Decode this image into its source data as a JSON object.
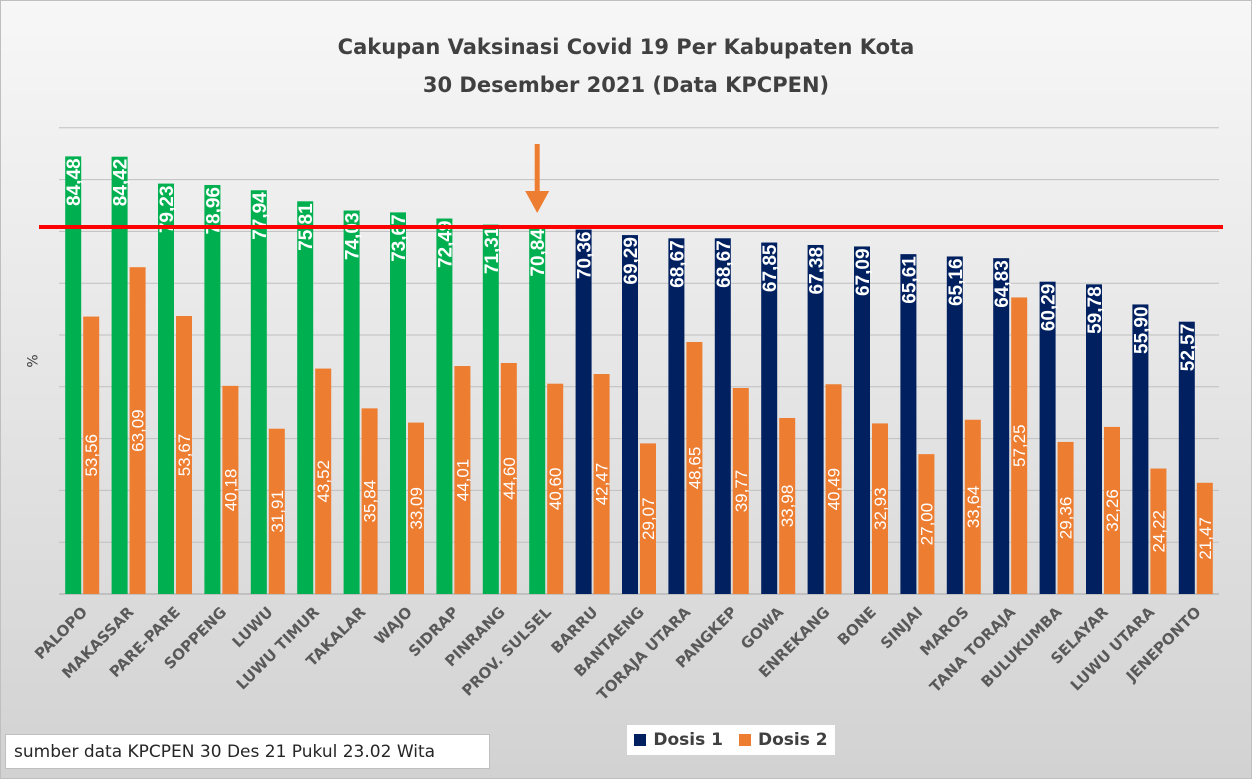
{
  "chart_data": {
    "type": "bar",
    "title": "Cakupan Vaksinasi Covid 19 Per Kabupaten Kota",
    "subtitle": "30 Desember 2021 (Data KPCPEN)",
    "ylabel": "%",
    "xlabel": "",
    "ylim": [
      0,
      100
    ],
    "grid": true,
    "reference_line": 70.84,
    "categories": [
      "PALOPO",
      "MAKASSAR",
      "PARE-PARE",
      "SOPPENG",
      "LUWU",
      "LUWU TIMUR",
      "TAKALAR",
      "WAJO",
      "SIDRAP",
      "PINRANG",
      "PROV. SULSEL",
      "BARRU",
      "BANTAENG",
      "TORAJA UTARA",
      "PANGKEP",
      "GOWA",
      "ENREKANG",
      "BONE",
      "SINJAI",
      "MAROS",
      "TANA TORAJA",
      "BULUKUMBA",
      "SELAYAR",
      "LUWU UTARA",
      "JENEPONTO"
    ],
    "series": [
      {
        "name": "Dosis 1",
        "values": [
          84.48,
          84.42,
          79.23,
          78.96,
          77.94,
          75.81,
          74.03,
          73.67,
          72.49,
          71.31,
          70.84,
          70.36,
          69.29,
          68.67,
          68.67,
          67.85,
          67.38,
          67.09,
          65.61,
          65.16,
          64.83,
          60.29,
          59.78,
          55.9,
          52.57
        ],
        "labels": [
          "84,48",
          "84,42",
          "79,23",
          "78,96",
          "77,94",
          "75,81",
          "74,03",
          "73,67",
          "72,49",
          "71,31",
          "70,84",
          "70,36",
          "69,29",
          "68,67",
          "68,67",
          "67,85",
          "67,38",
          "67,09",
          "65,61",
          "65,16",
          "64,83",
          "60,29",
          "59,78",
          "55,90",
          "52,57"
        ]
      },
      {
        "name": "Dosis 2",
        "values": [
          53.56,
          63.09,
          53.67,
          40.18,
          31.91,
          43.52,
          35.84,
          33.09,
          44.01,
          44.6,
          40.6,
          42.47,
          29.07,
          48.65,
          39.77,
          33.98,
          40.49,
          32.93,
          27.0,
          33.64,
          57.25,
          29.36,
          32.26,
          24.22,
          21.47
        ],
        "labels": [
          "53,56",
          "63,09",
          "53,67",
          "40,18",
          "31,91",
          "43,52",
          "35,84",
          "33,09",
          "44,01",
          "44,60",
          "40,60",
          "42,47",
          "29,07",
          "48,65",
          "39,77",
          "33,98",
          "40,49",
          "32,93",
          "27,00",
          "33,64",
          "57,25",
          "29,36",
          "32,26",
          "24,22",
          "21,47"
        ]
      }
    ],
    "legend": [
      "Dosis 1",
      "Dosis 2"
    ],
    "legend_position": "bottom"
  },
  "colors": {
    "above_line": "#00b050",
    "below_line": "#002060",
    "dosis2": "#ed7d31",
    "reference_line": "#ff0000",
    "arrow": "#ed7d31"
  },
  "footer": {
    "source": "sumber data KPCPEN 30 Des 21 Pukul 23.02 Wita"
  }
}
